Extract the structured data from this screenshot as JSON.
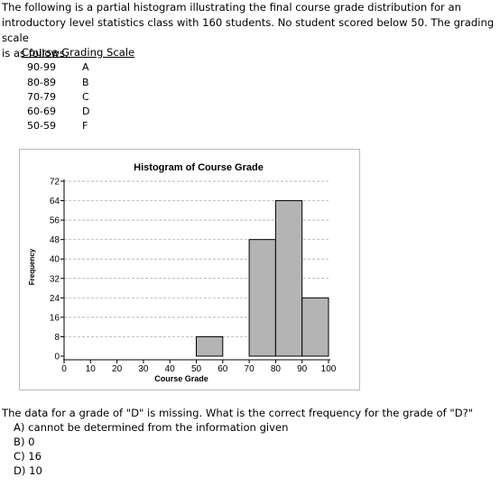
{
  "intro": {
    "line1": "The following is a partial histogram illustrating the final course grade distribution for an",
    "line2": "introductory level statistics class with 160 students.  No student scored below 50.  The grading scale",
    "line3": "is as follows."
  },
  "grading_scale": {
    "title": "Course Grading Scale",
    "rows": [
      {
        "range": "90-99",
        "letter": "A"
      },
      {
        "range": "80-89",
        "letter": "B"
      },
      {
        "range": "70-79",
        "letter": "C"
      },
      {
        "range": "60-69",
        "letter": "D"
      },
      {
        "range": "50-59",
        "letter": "F"
      }
    ]
  },
  "chart_data": {
    "type": "bar",
    "title": "Histogram of Course Grade",
    "xlabel": "Course Grade",
    "ylabel": "Frequency",
    "xlim": [
      0,
      100
    ],
    "ylim": [
      0,
      72
    ],
    "x_ticks": [
      0,
      10,
      20,
      30,
      40,
      50,
      60,
      70,
      80,
      90,
      100
    ],
    "y_ticks": [
      0,
      8,
      16,
      24,
      32,
      40,
      48,
      56,
      64,
      72
    ],
    "grid": "horizontal dashed",
    "bars": [
      {
        "start": 50,
        "end": 60,
        "value": 8
      },
      {
        "start": 70,
        "end": 80,
        "value": 48
      },
      {
        "start": 80,
        "end": 90,
        "value": 64
      },
      {
        "start": 90,
        "end": 100,
        "value": 24
      }
    ],
    "colors": {
      "bar_fill": "#b4b4b4",
      "bar_edge": "#000000",
      "grid": "#a0a0a0"
    }
  },
  "question": {
    "text": "The data for a grade of \"D\" is missing.  What is the correct frequency for the grade of \"D?\"",
    "options": [
      "A) cannot be determined from the information given",
      "B) 0",
      "C) 16",
      "D) 10"
    ]
  }
}
